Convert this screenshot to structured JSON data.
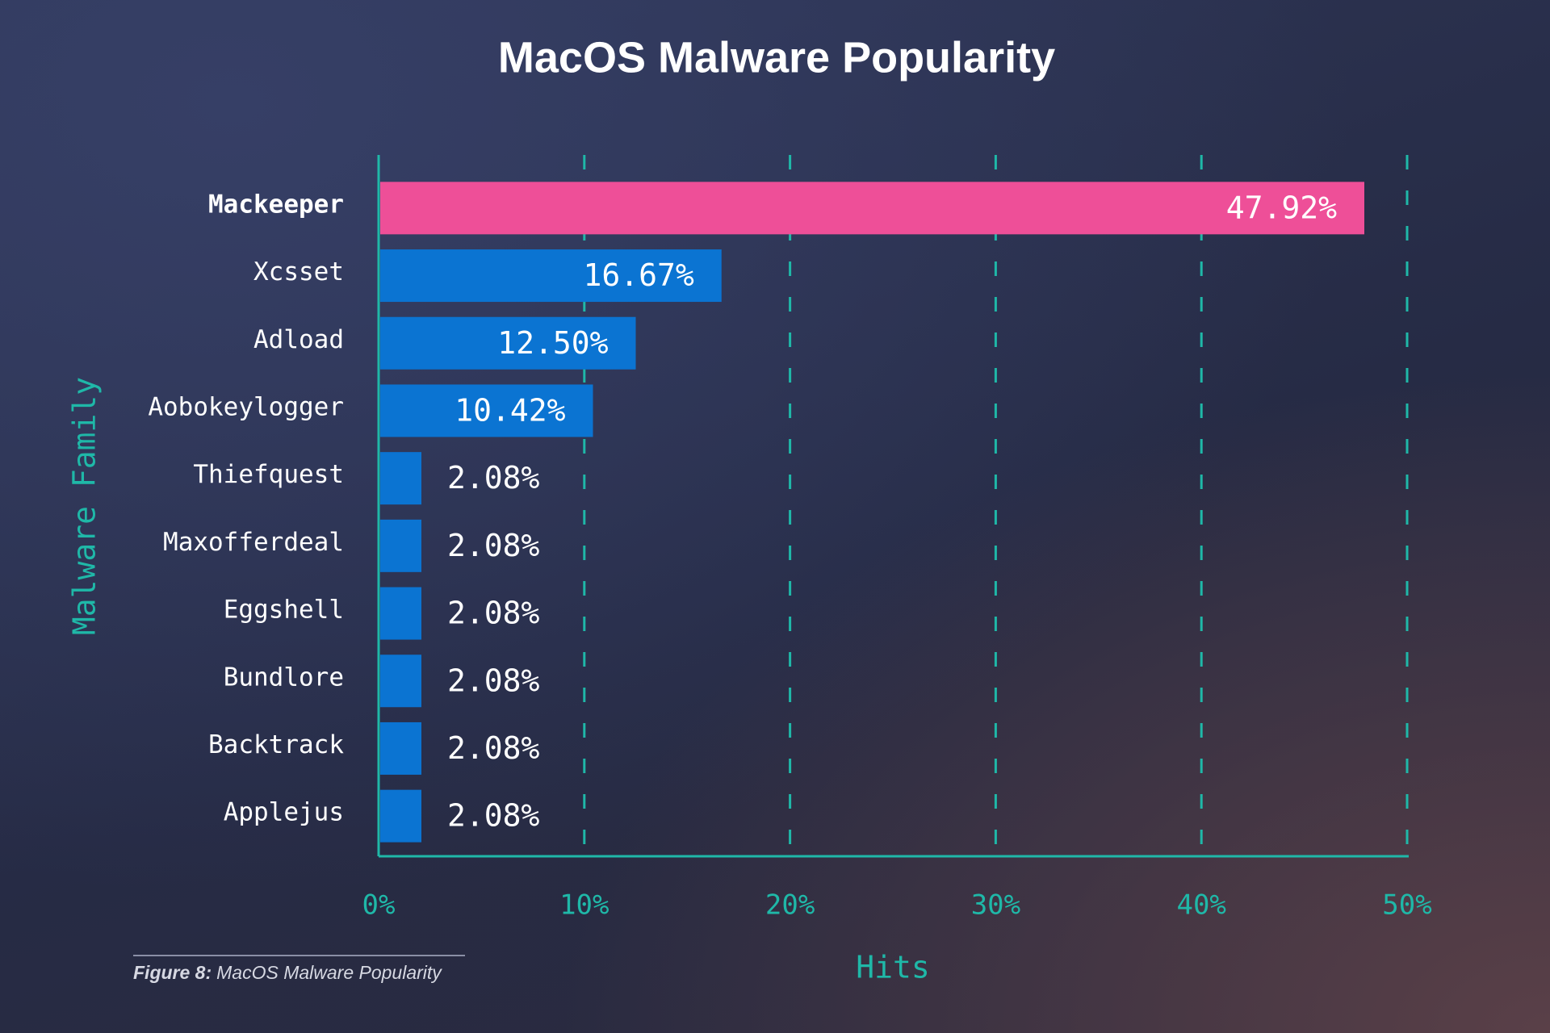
{
  "chart_data": {
    "type": "bar",
    "orientation": "horizontal",
    "title": "MacOS Malware Popularity",
    "x_label": "Hits",
    "y_label": "Malware Family",
    "caption_label": "Figure 8:",
    "caption_text": "MacOS Malware Popularity",
    "categories": [
      "Mackeeper",
      "Xcsset",
      "Adload",
      "Aobokeylogger",
      "Thiefquest",
      "Maxofferdeal",
      "Eggshell",
      "Bundlore",
      "Backtrack",
      "Applejus"
    ],
    "values": [
      47.92,
      16.67,
      12.5,
      10.42,
      2.08,
      2.08,
      2.08,
      2.08,
      2.08,
      2.08
    ],
    "value_labels": [
      "47.92%",
      "16.67%",
      "12.50%",
      "10.42%",
      "2.08%",
      "2.08%",
      "2.08%",
      "2.08%",
      "2.08%",
      "2.08%"
    ],
    "colors": [
      "#ee4f98",
      "#0b74d2",
      "#0b74d2",
      "#0b74d2",
      "#0b74d2",
      "#0b74d2",
      "#0b74d2",
      "#0b74d2",
      "#0b74d2",
      "#0b74d2"
    ],
    "xlim": [
      0,
      50
    ],
    "xticks": [
      {
        "value": 0,
        "label": "0%"
      },
      {
        "value": 10,
        "label": "10%"
      },
      {
        "value": 20,
        "label": "20%"
      },
      {
        "value": 30,
        "label": "30%"
      },
      {
        "value": 40,
        "label": "40%"
      },
      {
        "value": 50,
        "label": "50%"
      }
    ],
    "grid": true,
    "axis_color": "#1fb8a8"
  }
}
